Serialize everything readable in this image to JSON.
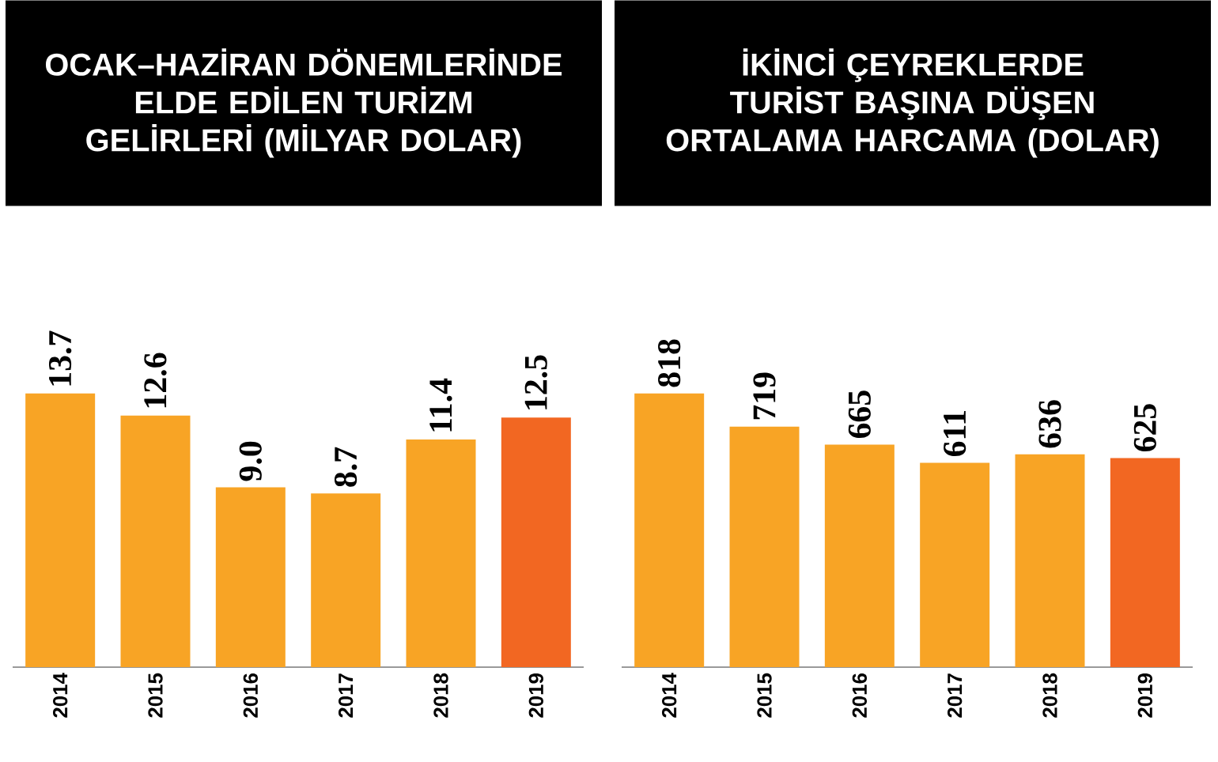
{
  "chart_data": [
    {
      "type": "bar",
      "title": "OCAK–HAZİRAN DÖNEMLERİNDE ELDE EDİLEN TURİZM GELİRLERİ (MİLYAR DOLAR)",
      "categories": [
        "2014",
        "2015",
        "2016",
        "2017",
        "2018",
        "2019"
      ],
      "values": [
        13.7,
        12.6,
        9.0,
        8.7,
        11.4,
        12.5
      ],
      "colors": [
        "#f8a425",
        "#f8a425",
        "#f8a425",
        "#f8a425",
        "#f8a425",
        "#f26722"
      ],
      "value_labels": [
        "13.7",
        "12.6",
        "9.0",
        "8.7",
        "11.4",
        "12.5"
      ]
    },
    {
      "type": "bar",
      "title": "İKİNCİ ÇEYREKLERDE TURİST BAŞINA DÜŞEN ORTALAMA HARCAMA (DOLAR)",
      "categories": [
        "2014",
        "2015",
        "2016",
        "2017",
        "2018",
        "2019"
      ],
      "values": [
        818,
        719,
        665,
        611,
        636,
        625
      ],
      "colors": [
        "#f8a425",
        "#f8a425",
        "#f8a425",
        "#f8a425",
        "#f8a425",
        "#f26722"
      ],
      "value_labels": [
        "818",
        "719",
        "665",
        "611",
        "636",
        "625"
      ]
    }
  ]
}
